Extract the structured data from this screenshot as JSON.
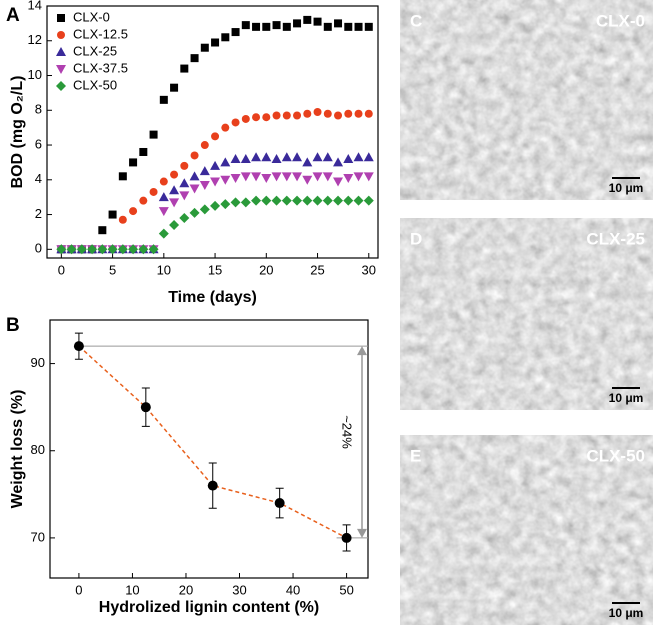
{
  "chart_data": [
    {
      "type": "scatter",
      "panel": "A",
      "x_label": "Time (days)",
      "y_label": "BOD (mg O₂/L)",
      "x": [
        0,
        1,
        2,
        3,
        4,
        5,
        6,
        7,
        8,
        9,
        10,
        11,
        12,
        13,
        14,
        15,
        16,
        17,
        18,
        19,
        20,
        21,
        22,
        23,
        24,
        25,
        26,
        27,
        28,
        29,
        30
      ],
      "series": [
        {
          "name": "CLX-0",
          "color": "#000000",
          "marker": "square",
          "values": [
            0,
            0,
            0,
            0,
            1.1,
            2.0,
            4.2,
            5.0,
            5.6,
            6.6,
            8.6,
            9.3,
            10.4,
            11.0,
            11.6,
            11.9,
            12.2,
            12.5,
            12.9,
            12.8,
            12.8,
            12.9,
            12.8,
            13.0,
            13.2,
            13.1,
            12.8,
            13.0,
            12.8,
            12.8,
            12.8
          ]
        },
        {
          "name": "CLX-12.5",
          "color": "#e8401c",
          "marker": "circle",
          "values": [
            0,
            0,
            0,
            0,
            0,
            0,
            1.7,
            2.2,
            2.8,
            3.3,
            3.9,
            4.3,
            4.8,
            5.4,
            6.0,
            6.5,
            7.0,
            7.3,
            7.5,
            7.6,
            7.6,
            7.7,
            7.7,
            7.7,
            7.8,
            7.9,
            7.8,
            7.7,
            7.8,
            7.8,
            7.8
          ]
        },
        {
          "name": "CLX-25",
          "color": "#3a2a9a",
          "marker": "triangle",
          "values": [
            0,
            0,
            0,
            0,
            0,
            0,
            0,
            0,
            0,
            0,
            3.0,
            3.4,
            3.8,
            4.2,
            4.5,
            4.8,
            5.0,
            5.2,
            5.2,
            5.3,
            5.3,
            5.2,
            5.3,
            5.3,
            5.0,
            5.3,
            5.3,
            5.0,
            5.2,
            5.3,
            5.3
          ]
        },
        {
          "name": "CLX-37.5",
          "color": "#b040b0",
          "marker": "triangle-down",
          "values": [
            0,
            0,
            0,
            0,
            0,
            0,
            0,
            0,
            0,
            0,
            2.2,
            2.7,
            3.1,
            3.5,
            3.7,
            3.9,
            4.0,
            4.1,
            4.2,
            4.2,
            4.1,
            4.2,
            4.2,
            4.2,
            4.0,
            4.2,
            4.2,
            3.9,
            4.1,
            4.2,
            4.2
          ]
        },
        {
          "name": "CLX-50",
          "color": "#2a9a3a",
          "marker": "diamond",
          "values": [
            0,
            0,
            0,
            0,
            0,
            0,
            0,
            0,
            0,
            0,
            0.9,
            1.4,
            1.8,
            2.1,
            2.3,
            2.5,
            2.6,
            2.7,
            2.7,
            2.8,
            2.8,
            2.8,
            2.8,
            2.8,
            2.8,
            2.8,
            2.8,
            2.8,
            2.8,
            2.8,
            2.8
          ]
        }
      ],
      "xlim": [
        -1.4,
        30.9
      ],
      "xticks": [
        0,
        5,
        10,
        15,
        20,
        25,
        30
      ],
      "ylim": [
        -0.5,
        14
      ],
      "yticks": [
        0,
        2,
        4,
        6,
        8,
        10,
        12,
        14
      ],
      "legend": "upper left"
    },
    {
      "type": "errorbar",
      "panel": "B",
      "x_label": "Hydrolized lignin content (%)",
      "y_label": "Weight loss (%)",
      "annotation": "~24%",
      "x": [
        0,
        12.5,
        25,
        37.5,
        50
      ],
      "series": [
        {
          "color": "#e8601c",
          "values": [
            92,
            85,
            76,
            74,
            70
          ],
          "errors": [
            1.5,
            2.2,
            2.6,
            1.7,
            1.5
          ]
        }
      ],
      "xlim": [
        -5.4,
        54
      ],
      "xticks": [
        0,
        10,
        20,
        30,
        40,
        50
      ],
      "ylim": [
        65.4,
        95
      ],
      "yticks": [
        70,
        80,
        90
      ]
    }
  ],
  "images": [
    {
      "panel": "C",
      "label": "CLX-0",
      "scale": "10 μm"
    },
    {
      "panel": "D",
      "label": "CLX-25",
      "scale": "10 μm"
    },
    {
      "panel": "E",
      "label": "CLX-50",
      "scale": "10 μm"
    }
  ]
}
